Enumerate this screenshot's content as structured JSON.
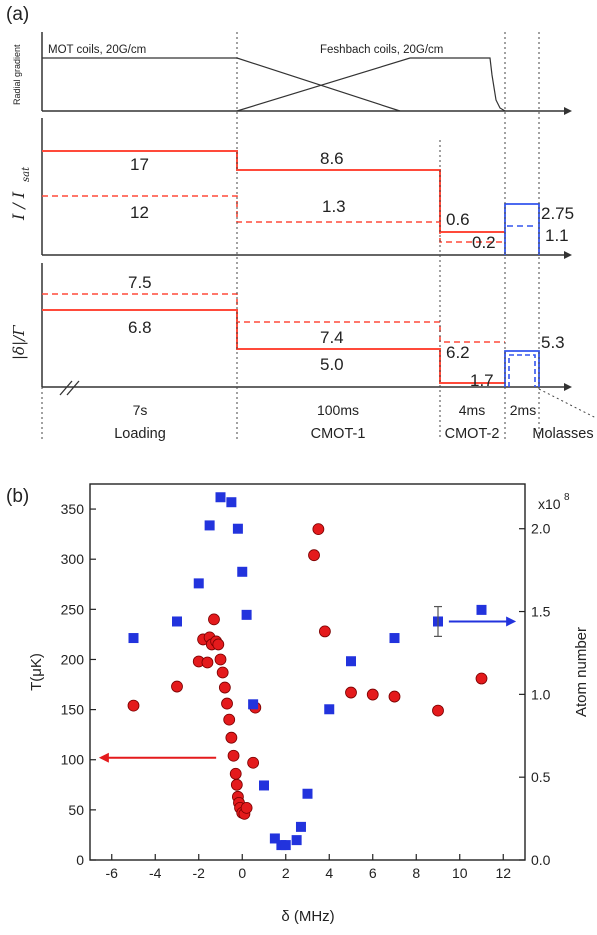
{
  "chart_data": [
    {
      "type": "line",
      "panel_label": "(a)",
      "phases": [
        "Loading",
        "CMOT-1",
        "CMOT-2",
        "Molasses"
      ],
      "durations": [
        "7s",
        "100ms",
        "4ms",
        "2ms"
      ],
      "gradient_panel": {
        "ylabel": "Radial gradient",
        "annotations": [
          "MOT coils, 20G/cm",
          "Feshbach coils, 20G/cm"
        ]
      },
      "intensity_panel": {
        "ylabel": "I/I_sat",
        "ylabel_main": "I / I",
        "ylabel_sub": "sat",
        "series": [
          {
            "style": "solid",
            "color": "#ff4a3a",
            "values": [
              17,
              8.6,
              0.6
            ]
          },
          {
            "style": "dashed",
            "color": "#ff4a3a",
            "values": [
              12,
              1.3,
              0.2
            ]
          },
          {
            "style": "solid",
            "color": "#3355ee",
            "values": [
              2.75
            ]
          },
          {
            "style": "dashed",
            "color": "#3355ee",
            "values": [
              1.1
            ]
          }
        ],
        "labels": [
          "17",
          "12",
          "8.6",
          "1.3",
          "0.6",
          "0.2",
          "2.75",
          "1.1"
        ]
      },
      "detuning_panel": {
        "ylabel": "|δ|/Γ",
        "series": [
          {
            "style": "dashed",
            "color": "#ff4a3a",
            "values": [
              7.5,
              7.4,
              6.2
            ]
          },
          {
            "style": "solid",
            "color": "#ff4a3a",
            "values": [
              6.8,
              5.0,
              1.7
            ]
          },
          {
            "style": "solid",
            "color": "#3355ee",
            "values": [
              5.3
            ]
          },
          {
            "style": "dashed",
            "color": "#3355ee",
            "values": [
              5.3
            ]
          }
        ],
        "labels": [
          "7.5",
          "6.8",
          "7.4",
          "5.0",
          "6.2",
          "1.7",
          "5.3"
        ]
      }
    },
    {
      "type": "scatter",
      "panel_label": "(b)",
      "xlabel": "δ (MHz)",
      "ylabel": "T(μK)",
      "y2label": "Atom number",
      "y2_multiplier": "x10",
      "y2_exponent": "8",
      "xlim": [
        -7,
        13
      ],
      "ylim": [
        0,
        375
      ],
      "y2lim": [
        0,
        2.27
      ],
      "xticks": [
        "-6",
        "-4",
        "-2",
        "0",
        "2",
        "4",
        "6",
        "8",
        "10",
        "12"
      ],
      "yticks": [
        "0",
        "50",
        "100",
        "150",
        "200",
        "250",
        "300",
        "350"
      ],
      "y2ticks": [
        "0.0",
        "0.5",
        "1.0",
        "1.5",
        "2.0"
      ],
      "series": [
        {
          "name": "T(μK)",
          "axis": "left",
          "marker": "circle",
          "color": "#e41a1c",
          "x": [
            -5,
            -3,
            -2,
            -1.8,
            -1.6,
            -1.5,
            -1.4,
            -1.3,
            -1.2,
            -1.1,
            -1.0,
            -0.9,
            -0.8,
            -0.7,
            -0.6,
            -0.5,
            -0.4,
            -0.3,
            -0.25,
            -0.2,
            -0.15,
            -0.1,
            0.0,
            0.1,
            0.2,
            0.5,
            0.6,
            3.3,
            3.5,
            3.8,
            5,
            6,
            7,
            9,
            11
          ],
          "y": [
            154,
            173,
            198,
            220,
            197,
            222,
            215,
            240,
            218,
            215,
            200,
            187,
            172,
            156,
            140,
            122,
            104,
            86,
            75,
            63,
            57,
            52,
            47,
            46,
            52,
            97,
            152,
            304,
            330,
            228,
            167,
            165,
            163,
            149,
            181
          ]
        },
        {
          "name": "Atom number",
          "axis": "right",
          "marker": "square",
          "color": "#2233dd",
          "x": [
            -5,
            -3,
            -2,
            -1.5,
            -1,
            -0.5,
            -0.2,
            0,
            0.2,
            0.5,
            1,
            1.5,
            1.8,
            2,
            2.5,
            2.7,
            3,
            4,
            5,
            7,
            9,
            11
          ],
          "y": [
            1.34,
            1.44,
            1.67,
            2.02,
            2.19,
            2.16,
            2.0,
            1.74,
            1.48,
            0.94,
            0.45,
            0.13,
            0.09,
            0.09,
            0.12,
            0.2,
            0.4,
            0.91,
            1.2,
            1.34,
            1.44,
            1.51
          ],
          "error_index": 20,
          "error": 0.09
        }
      ]
    }
  ]
}
